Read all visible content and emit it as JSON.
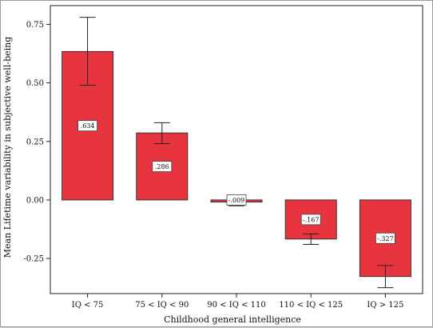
{
  "chart_data": {
    "type": "bar",
    "title": "",
    "xlabel": "Childhood general intelligence",
    "ylabel": "Mean Lifetime variability in subjective well-being",
    "categories": [
      "IQ < 75",
      "75 < IQ < 90",
      "90 < IQ < 110",
      "110 < IQ < 125",
      "IQ > 125"
    ],
    "values": [
      0.634,
      0.286,
      -0.009,
      -0.167,
      -0.327
    ],
    "data_labels": [
      ".634",
      ".286",
      "-.009",
      "-.167",
      "-.327"
    ],
    "error_bars": [
      {
        "low": 0.49,
        "high": 0.78
      },
      {
        "low": 0.24,
        "high": 0.33
      },
      {
        "low": -0.025,
        "high": 0.01
      },
      {
        "low": -0.19,
        "high": -0.145
      },
      {
        "low": -0.375,
        "high": -0.28
      }
    ],
    "ylim": [
      -0.4,
      0.83
    ],
    "yticks": [
      0.75,
      0.5,
      0.25,
      0.0,
      -0.25
    ],
    "ytick_labels": [
      "0.75",
      "0.50",
      "0.25",
      "0.00",
      "-0.25"
    ],
    "bar_color": "#e8343f",
    "grid": false,
    "legend": "none"
  }
}
